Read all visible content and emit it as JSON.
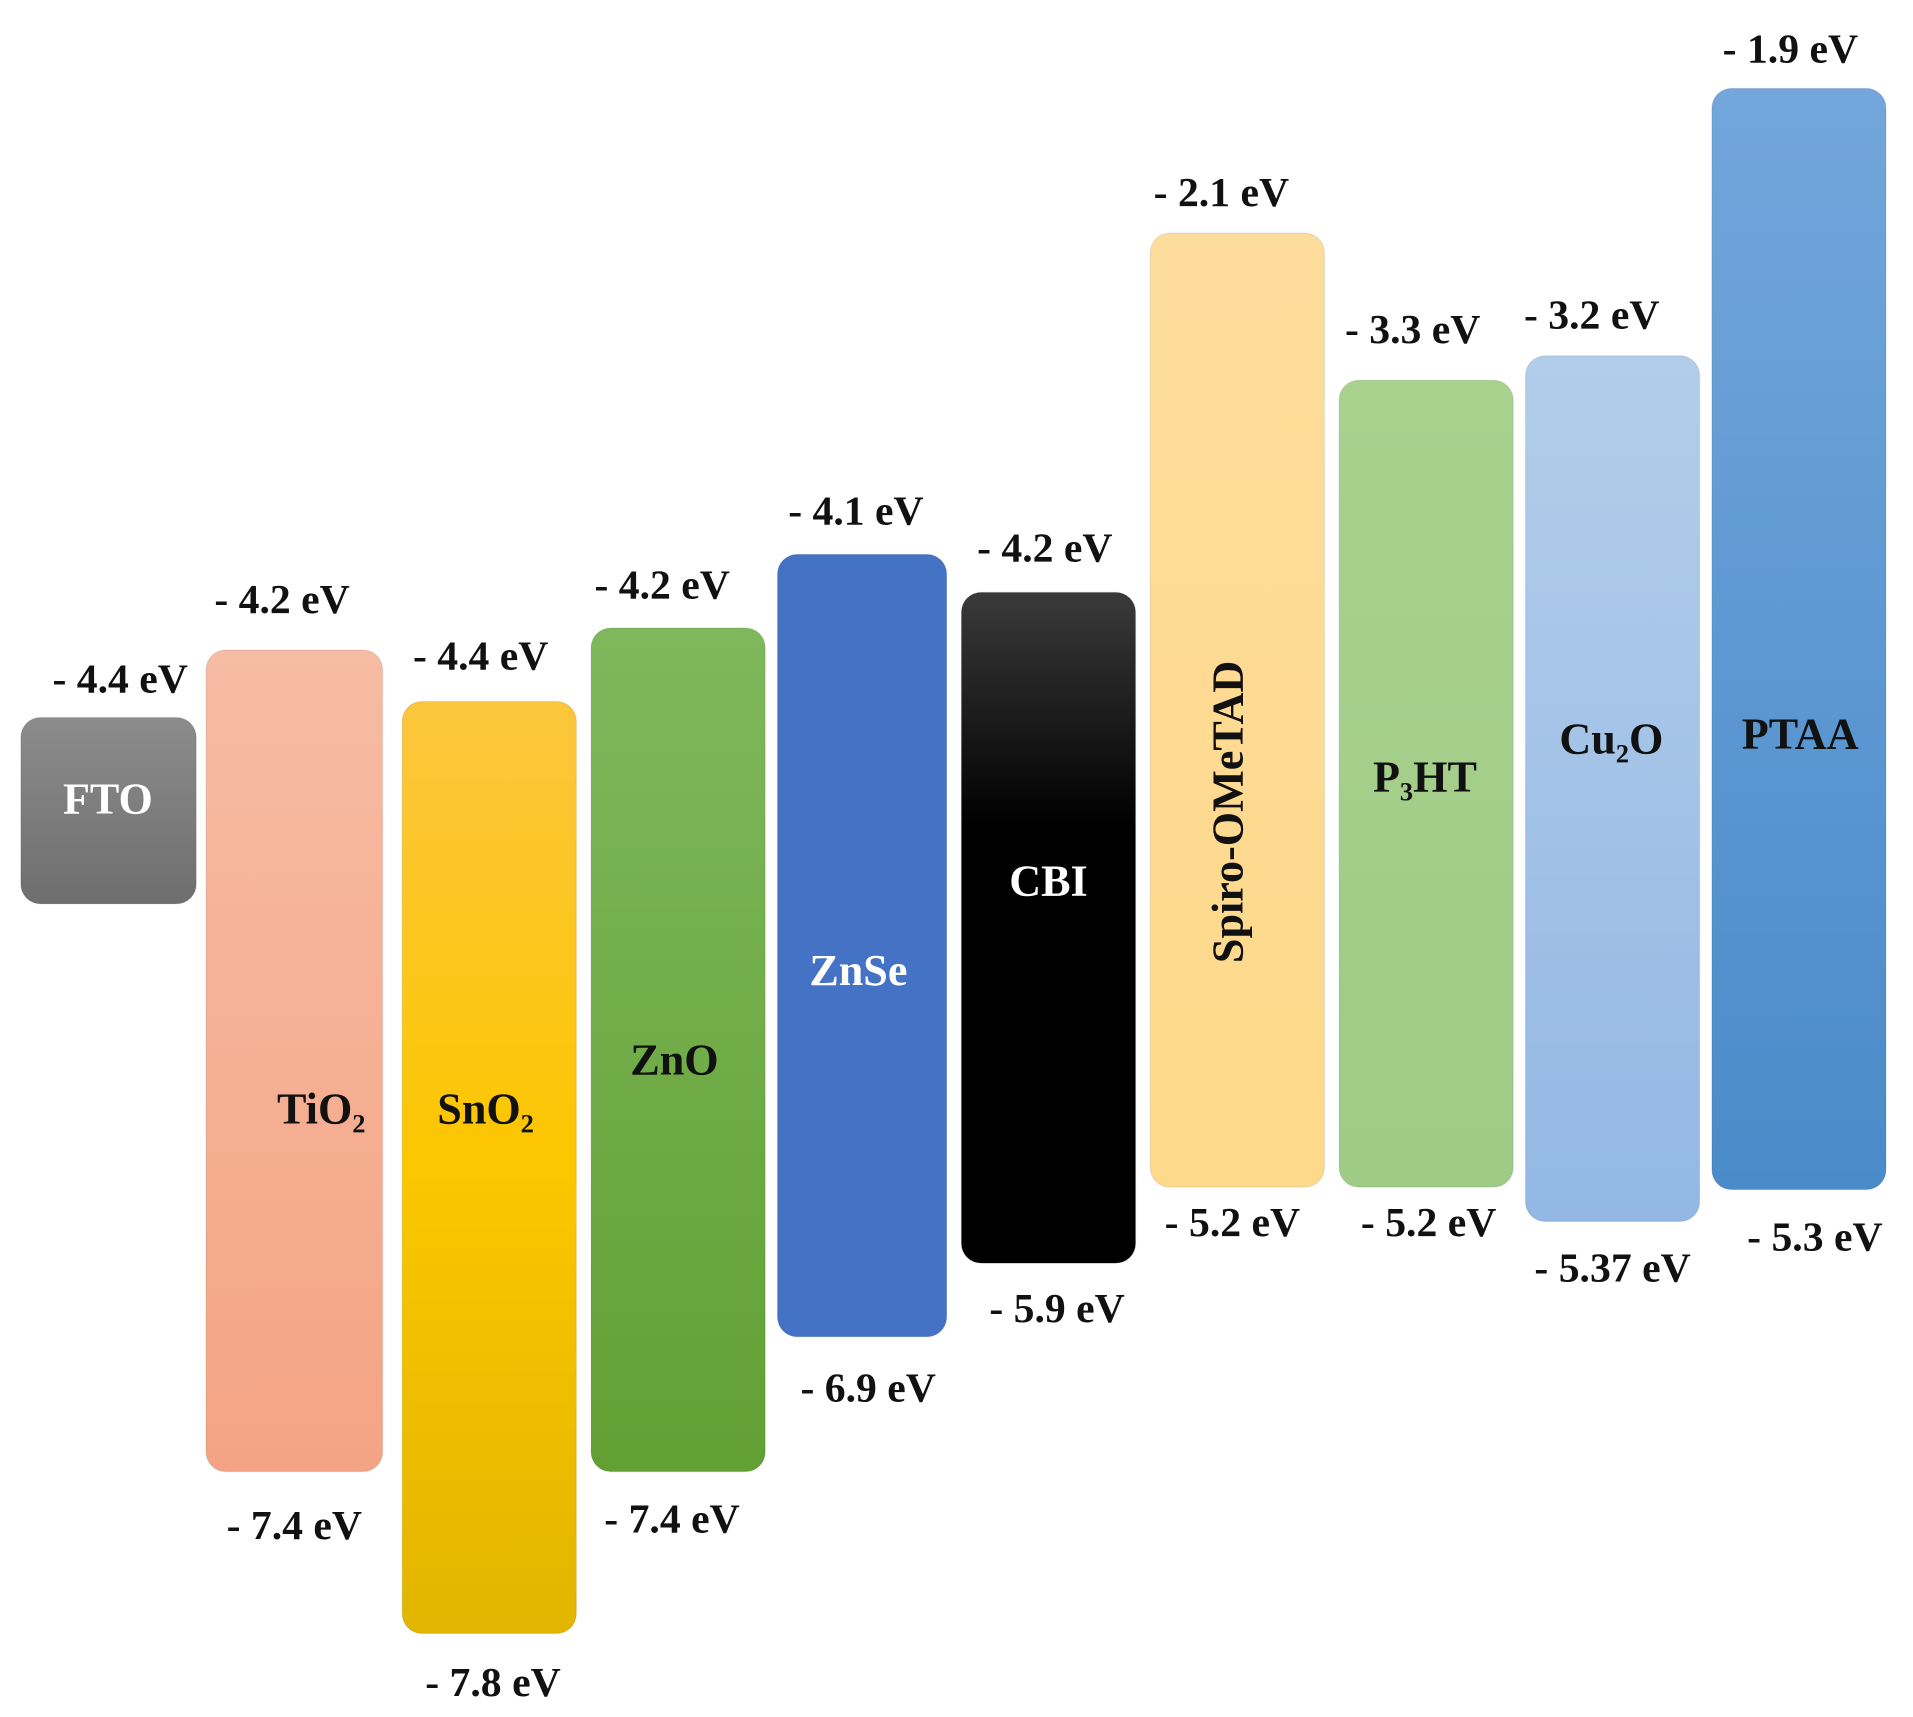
{
  "layers": [
    {
      "name": "FTO",
      "top": "- 4.4 eV"
    },
    {
      "name": "TiO₂",
      "top": "- 4.2 eV",
      "bottom": "- 7.4 eV"
    },
    {
      "name": "SnO₂",
      "top": "- 4.4 eV",
      "bottom": "- 7.8 eV"
    },
    {
      "name": "ZnO",
      "top": "- 4.2 eV",
      "bottom": "- 7.4 eV"
    },
    {
      "name": "ZnSe",
      "top": "- 4.1 eV",
      "bottom": "- 6.9 eV"
    },
    {
      "name": "CBI",
      "top": "- 4.2 eV",
      "bottom": "- 5.9 eV"
    },
    {
      "name": "Spiro-OMeTAD",
      "top": "- 2.1 eV",
      "bottom": "- 5.2 eV"
    },
    {
      "name": "P₃HT",
      "top": "- 3.3 eV",
      "bottom": "- 5.2 eV"
    },
    {
      "name": "Cu₂O",
      "top": "- 3.2 eV",
      "bottom": "- 5.37 eV"
    },
    {
      "name": "PTAA",
      "top": "- 1.9 eV",
      "bottom": "- 5.3 eV"
    }
  ]
}
